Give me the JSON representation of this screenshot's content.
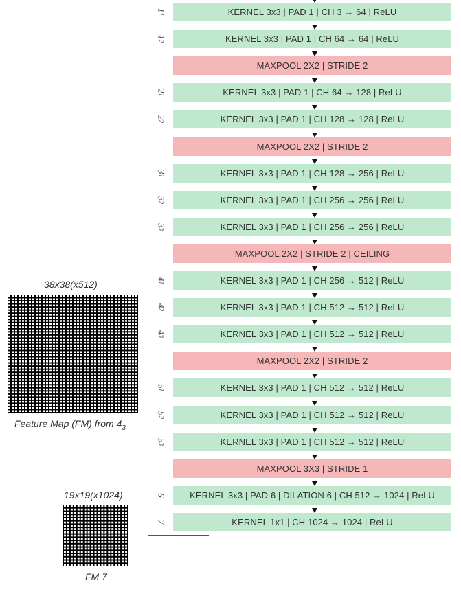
{
  "layers": [
    {
      "type": "conv",
      "idx_main": "1",
      "idx_sub": "1",
      "label": "KERNEL 3x3 | PAD 1 | CH  3 → 64 | ReLU"
    },
    {
      "type": "conv",
      "idx_main": "1",
      "idx_sub": "2",
      "label": "KERNEL 3x3 | PAD 1 | CH  64 → 64 | ReLU"
    },
    {
      "type": "pool",
      "idx_main": "",
      "idx_sub": "",
      "label": "MAXPOOL 2X2 | STRIDE 2"
    },
    {
      "type": "conv",
      "idx_main": "2",
      "idx_sub": "1",
      "label": "KERNEL 3x3 | PAD 1 | CH  64 → 128 | ReLU"
    },
    {
      "type": "conv",
      "idx_main": "2",
      "idx_sub": "2",
      "label": "KERNEL 3x3 | PAD 1 | CH  128 → 128 | ReLU"
    },
    {
      "type": "pool",
      "idx_main": "",
      "idx_sub": "",
      "label": "MAXPOOL 2X2 | STRIDE 2"
    },
    {
      "type": "conv",
      "idx_main": "3",
      "idx_sub": "1",
      "label": "KERNEL 3x3 | PAD 1 | CH  128 → 256 | ReLU"
    },
    {
      "type": "conv",
      "idx_main": "3",
      "idx_sub": "2",
      "label": "KERNEL 3x3 | PAD 1 | CH  256 → 256 | ReLU"
    },
    {
      "type": "conv",
      "idx_main": "3",
      "idx_sub": "3",
      "label": "KERNEL 3x3 | PAD 1 | CH  256 → 256 | ReLU"
    },
    {
      "type": "pool",
      "idx_main": "",
      "idx_sub": "",
      "label": "MAXPOOL 2X2 | STRIDE 2 | CEILING"
    },
    {
      "type": "conv",
      "idx_main": "4",
      "idx_sub": "1",
      "label": "KERNEL 3x3 | PAD 1 | CH  256 → 512 | ReLU"
    },
    {
      "type": "conv",
      "idx_main": "4",
      "idx_sub": "2",
      "label": "KERNEL 3x3 | PAD 1 | CH  512 → 512 | ReLU"
    },
    {
      "type": "conv",
      "idx_main": "4",
      "idx_sub": "3",
      "label": "KERNEL 3x3 | PAD 1 | CH  512 → 512 | ReLU"
    },
    {
      "type": "pool",
      "idx_main": "",
      "idx_sub": "",
      "label": "MAXPOOL 2X2 | STRIDE 2"
    },
    {
      "type": "conv",
      "idx_main": "5",
      "idx_sub": "1",
      "label": "KERNEL 3x3 | PAD 1 | CH  512 → 512 | ReLU"
    },
    {
      "type": "conv",
      "idx_main": "5",
      "idx_sub": "2",
      "label": "KERNEL 3x3 | PAD 1 | CH  512 → 512 | ReLU"
    },
    {
      "type": "conv",
      "idx_main": "5",
      "idx_sub": "3",
      "label": "KERNEL 3x3 | PAD 1 | CH  512 → 512 | ReLU"
    },
    {
      "type": "pool",
      "idx_main": "",
      "idx_sub": "",
      "label": "MAXPOOL 3X3 | STRIDE 1"
    },
    {
      "type": "conv",
      "idx_main": "6",
      "idx_sub": "",
      "label": "KERNEL 3x3 | PAD 6 | DILATION 6 | CH  512 → 1024 | ReLU"
    },
    {
      "type": "conv",
      "idx_main": "7",
      "idx_sub": "",
      "label": "KERNEL 1x1 | CH  1024 → 1024 | ReLU"
    }
  ],
  "feature_maps": [
    {
      "title": "38x38(x512)",
      "caption_main": "Feature Map (FM) from 4",
      "caption_sub": "3",
      "cells": 38
    },
    {
      "title": "19x19(x1024)",
      "caption_main": "FM 7",
      "caption_sub": "",
      "cells": 19
    }
  ],
  "colors": {
    "conv": "#bfe8cf",
    "pool": "#f6b7b9"
  }
}
